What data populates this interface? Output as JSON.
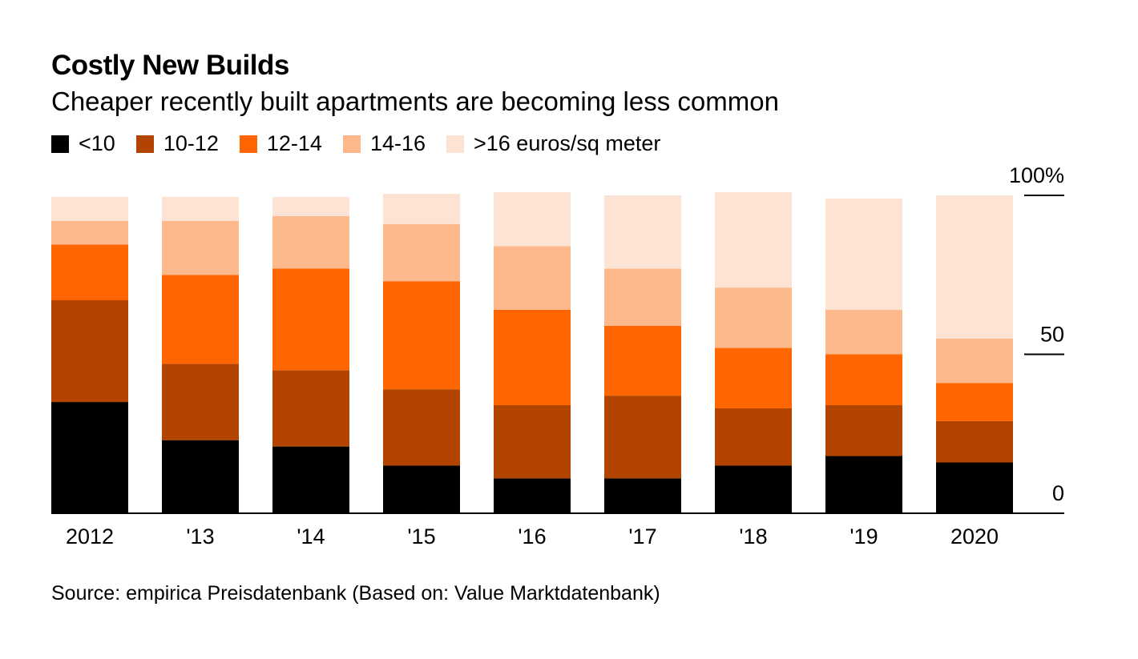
{
  "title": "Costly New Builds",
  "subtitle": "Cheaper recently built apartments are becoming less common",
  "legend": [
    {
      "label": "<10",
      "color": "#000000"
    },
    {
      "label": "10-12",
      "color": "#b34400"
    },
    {
      "label": "12-14",
      "color": "#ff6500"
    },
    {
      "label": "14-16",
      "color": "#fdb98c"
    },
    {
      "label": ">16 euros/sq meter",
      "color": "#fde3d4"
    }
  ],
  "source": "Source: empirica Preisdatenbank (Based on: Value Marktdatenbank)",
  "chart_data": {
    "type": "bar",
    "stacked": true,
    "categories": [
      "2012",
      "'13",
      "'14",
      "'15",
      "'16",
      "'17",
      "'18",
      "'19",
      "2020"
    ],
    "series": [
      {
        "name": "<10",
        "color": "#000000",
        "values": [
          35,
          23,
          21,
          15,
          11,
          11,
          15,
          18,
          16
        ]
      },
      {
        "name": "10-12",
        "color": "#b34400",
        "values": [
          32,
          24,
          24,
          24,
          23,
          26,
          18,
          16,
          13
        ]
      },
      {
        "name": "12-14",
        "color": "#ff6500",
        "values": [
          17.5,
          28,
          32,
          34,
          30,
          22,
          19,
          16,
          12
        ]
      },
      {
        "name": "14-16",
        "color": "#fdb98c",
        "values": [
          7.5,
          17,
          16.5,
          18,
          20,
          18,
          19,
          14,
          14
        ]
      },
      {
        "name": ">16 euros/sq meter",
        "color": "#fde3d4",
        "values": [
          7.5,
          7.5,
          6,
          9.5,
          17,
          23,
          30,
          35,
          45
        ]
      }
    ],
    "ylim": [
      0,
      100
    ],
    "yticks": [
      0,
      50,
      100
    ],
    "ytick_labels": [
      "0",
      "50",
      "100%"
    ],
    "xlabel": "",
    "ylabel": ""
  }
}
